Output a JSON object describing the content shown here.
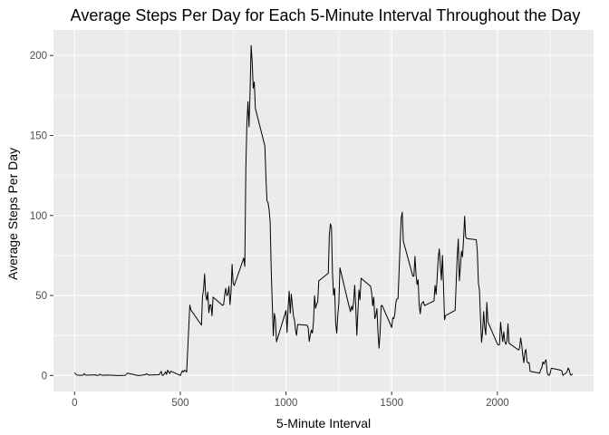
{
  "chart_data": {
    "type": "line",
    "title": "Average Steps Per Day for Each 5-Minute Interval Throughout the Day",
    "xlabel": "5-Minute Interval",
    "ylabel": "Average Steps Per Day",
    "xlim": [
      -100,
      2455
    ],
    "ylim": [
      -10,
      216
    ],
    "x_ticks": [
      0,
      500,
      1000,
      1500,
      2000
    ],
    "x_tick_labels": [
      "0",
      "500",
      "1000",
      "1500",
      "2000"
    ],
    "y_ticks": [
      0,
      50,
      100,
      150,
      200
    ],
    "y_tick_labels": [
      "0",
      "50",
      "100",
      "150",
      "200"
    ],
    "grid": true,
    "background": "#ebebeb",
    "grid_color": "#ffffff",
    "line_color": "#000000",
    "series": [
      {
        "points": [
          [
            0,
            1.7
          ],
          [
            10,
            0.3
          ],
          [
            20,
            0.2
          ],
          [
            30,
            0.1
          ],
          [
            40,
            0.2
          ],
          [
            45,
            1.2
          ],
          [
            50,
            0.4
          ],
          [
            55,
            0.2
          ],
          [
            100,
            0.4
          ],
          [
            105,
            0
          ],
          [
            115,
            0.2
          ],
          [
            120,
            0.8
          ],
          [
            130,
            0.1
          ],
          [
            155,
            0.3
          ],
          [
            200,
            0
          ],
          [
            215,
            0
          ],
          [
            240,
            0.1
          ],
          [
            250,
            1.5
          ],
          [
            300,
            0
          ],
          [
            320,
            0.2
          ],
          [
            335,
            0.6
          ],
          [
            340,
            1.1
          ],
          [
            350,
            0.3
          ],
          [
            400,
            0.5
          ],
          [
            410,
            2.6
          ],
          [
            415,
            0
          ],
          [
            420,
            0.3
          ],
          [
            425,
            1
          ],
          [
            430,
            2.3
          ],
          [
            435,
            0.7
          ],
          [
            440,
            3.4
          ],
          [
            450,
            1.2
          ],
          [
            455,
            2.7
          ],
          [
            500,
            0
          ],
          [
            505,
            1.6
          ],
          [
            510,
            3
          ],
          [
            515,
            2.2
          ],
          [
            520,
            3.3
          ],
          [
            525,
            3
          ],
          [
            530,
            2.1
          ],
          [
            545,
            44
          ],
          [
            550,
            41
          ],
          [
            600,
            31.5
          ],
          [
            605,
            49.3
          ],
          [
            610,
            53.8
          ],
          [
            615,
            63.5
          ],
          [
            620,
            50
          ],
          [
            625,
            47.1
          ],
          [
            630,
            52.2
          ],
          [
            635,
            39.3
          ],
          [
            640,
            44
          ],
          [
            645,
            44.2
          ],
          [
            650,
            37.4
          ],
          [
            655,
            49
          ],
          [
            700,
            43.8
          ],
          [
            705,
            44.4
          ],
          [
            710,
            50.5
          ],
          [
            715,
            54.5
          ],
          [
            720,
            49.9
          ],
          [
            725,
            51
          ],
          [
            730,
            55.7
          ],
          [
            735,
            44.3
          ],
          [
            740,
            52.3
          ],
          [
            745,
            69.5
          ],
          [
            750,
            57.8
          ],
          [
            755,
            56.2
          ],
          [
            800,
            73.4
          ],
          [
            805,
            68.2
          ],
          [
            810,
            129.4
          ],
          [
            815,
            157.5
          ],
          [
            820,
            171.2
          ],
          [
            825,
            155.4
          ],
          [
            830,
            177.3
          ],
          [
            835,
            206.2
          ],
          [
            840,
            195.9
          ],
          [
            845,
            179.6
          ],
          [
            850,
            183.4
          ],
          [
            855,
            167
          ],
          [
            900,
            143.5
          ],
          [
            905,
            124
          ],
          [
            910,
            109.1
          ],
          [
            915,
            108.1
          ],
          [
            920,
            103.7
          ],
          [
            925,
            96
          ],
          [
            930,
            66.2
          ],
          [
            935,
            45.2
          ],
          [
            940,
            24.8
          ],
          [
            945,
            38.8
          ],
          [
            950,
            35
          ],
          [
            955,
            21.1
          ],
          [
            1000,
            40.6
          ],
          [
            1005,
            26.9
          ],
          [
            1010,
            42.4
          ],
          [
            1015,
            52.7
          ],
          [
            1020,
            38.9
          ],
          [
            1025,
            50.8
          ],
          [
            1030,
            44.3
          ],
          [
            1035,
            37.4
          ],
          [
            1040,
            34.7
          ],
          [
            1045,
            28.3
          ],
          [
            1050,
            25.1
          ],
          [
            1055,
            31.9
          ],
          [
            1100,
            31.4
          ],
          [
            1105,
            29.7
          ],
          [
            1110,
            21.3
          ],
          [
            1115,
            25.5
          ],
          [
            1120,
            28.4
          ],
          [
            1125,
            26.5
          ],
          [
            1130,
            33.4
          ],
          [
            1135,
            49.9
          ],
          [
            1140,
            42
          ],
          [
            1145,
            44.6
          ],
          [
            1150,
            46
          ],
          [
            1155,
            59.2
          ],
          [
            1200,
            63.9
          ],
          [
            1205,
            87.7
          ],
          [
            1210,
            94.8
          ],
          [
            1215,
            92.8
          ],
          [
            1220,
            63.4
          ],
          [
            1225,
            50.2
          ],
          [
            1230,
            54.5
          ],
          [
            1235,
            32.4
          ],
          [
            1240,
            26.5
          ],
          [
            1245,
            37.7
          ],
          [
            1250,
            45.1
          ],
          [
            1255,
            67.3
          ],
          [
            1300,
            42.3
          ],
          [
            1305,
            39.9
          ],
          [
            1310,
            43.3
          ],
          [
            1315,
            40.9
          ],
          [
            1320,
            46.2
          ],
          [
            1325,
            56.4
          ],
          [
            1330,
            42.8
          ],
          [
            1335,
            25.1
          ],
          [
            1340,
            39.9
          ],
          [
            1345,
            53.5
          ],
          [
            1350,
            47.3
          ],
          [
            1355,
            60.8
          ],
          [
            1400,
            55.8
          ],
          [
            1405,
            51.9
          ],
          [
            1410,
            43.6
          ],
          [
            1415,
            49
          ],
          [
            1420,
            35.5
          ],
          [
            1425,
            37.5
          ],
          [
            1430,
            41.8
          ],
          [
            1435,
            27.5
          ],
          [
            1440,
            17.1
          ],
          [
            1445,
            26.2
          ],
          [
            1450,
            43.6
          ],
          [
            1455,
            43.8
          ],
          [
            1500,
            30
          ],
          [
            1505,
            36.1
          ],
          [
            1510,
            35.5
          ],
          [
            1515,
            38.8
          ],
          [
            1520,
            45.9
          ],
          [
            1525,
            47.8
          ],
          [
            1530,
            48.1
          ],
          [
            1535,
            65.3
          ],
          [
            1540,
            82.9
          ],
          [
            1545,
            98.7
          ],
          [
            1550,
            102.1
          ],
          [
            1555,
            83.96
          ],
          [
            1600,
            62.1
          ],
          [
            1605,
            62.1
          ],
          [
            1610,
            74.5
          ],
          [
            1615,
            63.2
          ],
          [
            1620,
            56.9
          ],
          [
            1625,
            59.8
          ],
          [
            1630,
            43.9
          ],
          [
            1635,
            38.6
          ],
          [
            1640,
            44.7
          ],
          [
            1645,
            45.5
          ],
          [
            1650,
            46.2
          ],
          [
            1655,
            43.7
          ],
          [
            1700,
            46.6
          ],
          [
            1705,
            56.3
          ],
          [
            1710,
            50.7
          ],
          [
            1715,
            61.2
          ],
          [
            1720,
            73.4
          ],
          [
            1725,
            79.1
          ],
          [
            1730,
            68.9
          ],
          [
            1735,
            59.7
          ],
          [
            1740,
            75.1
          ],
          [
            1745,
            56.5
          ],
          [
            1750,
            34.8
          ],
          [
            1755,
            37.5
          ],
          [
            1800,
            40.7
          ],
          [
            1805,
            58
          ],
          [
            1810,
            74.7
          ],
          [
            1815,
            85.3
          ],
          [
            1820,
            59.3
          ],
          [
            1825,
            67.8
          ],
          [
            1830,
            77.7
          ],
          [
            1835,
            74.2
          ],
          [
            1840,
            85.3
          ],
          [
            1845,
            99.5
          ],
          [
            1850,
            86.6
          ],
          [
            1855,
            85.6
          ],
          [
            1900,
            84.9
          ],
          [
            1905,
            77.8
          ],
          [
            1910,
            58
          ],
          [
            1915,
            53.4
          ],
          [
            1920,
            36.3
          ],
          [
            1925,
            20.7
          ],
          [
            1930,
            27.4
          ],
          [
            1935,
            40
          ],
          [
            1940,
            30.2
          ],
          [
            1945,
            25.5
          ],
          [
            1950,
            45.7
          ],
          [
            1955,
            33.5
          ],
          [
            2000,
            19.6
          ],
          [
            2005,
            19
          ],
          [
            2010,
            19.3
          ],
          [
            2015,
            33.3
          ],
          [
            2020,
            26.8
          ],
          [
            2025,
            21.2
          ],
          [
            2030,
            27.3
          ],
          [
            2035,
            21.3
          ],
          [
            2040,
            19.5
          ],
          [
            2045,
            21.3
          ],
          [
            2050,
            32.3
          ],
          [
            2055,
            20.2
          ],
          [
            2100,
            15.9
          ],
          [
            2105,
            17.2
          ],
          [
            2110,
            23.5
          ],
          [
            2115,
            19.2
          ],
          [
            2120,
            12.5
          ],
          [
            2125,
            8
          ],
          [
            2130,
            14.7
          ],
          [
            2135,
            16.3
          ],
          [
            2140,
            8.7
          ],
          [
            2145,
            7.8
          ],
          [
            2150,
            8.1
          ],
          [
            2155,
            2.6
          ],
          [
            2200,
            1.5
          ],
          [
            2205,
            3.7
          ],
          [
            2210,
            4.8
          ],
          [
            2215,
            8.5
          ],
          [
            2220,
            7.1
          ],
          [
            2225,
            8.7
          ],
          [
            2230,
            9.8
          ],
          [
            2235,
            2.2
          ],
          [
            2240,
            0.3
          ],
          [
            2245,
            0.1
          ],
          [
            2250,
            1.6
          ],
          [
            2255,
            4.6
          ],
          [
            2300,
            3.3
          ],
          [
            2305,
            2.8
          ],
          [
            2310,
            0
          ],
          [
            2315,
            0.8
          ],
          [
            2320,
            1
          ],
          [
            2325,
            1.6
          ],
          [
            2330,
            2.6
          ],
          [
            2335,
            4.7
          ],
          [
            2340,
            3.3
          ],
          [
            2345,
            0.6
          ],
          [
            2350,
            0.2
          ],
          [
            2355,
            1.1
          ]
        ]
      }
    ]
  }
}
